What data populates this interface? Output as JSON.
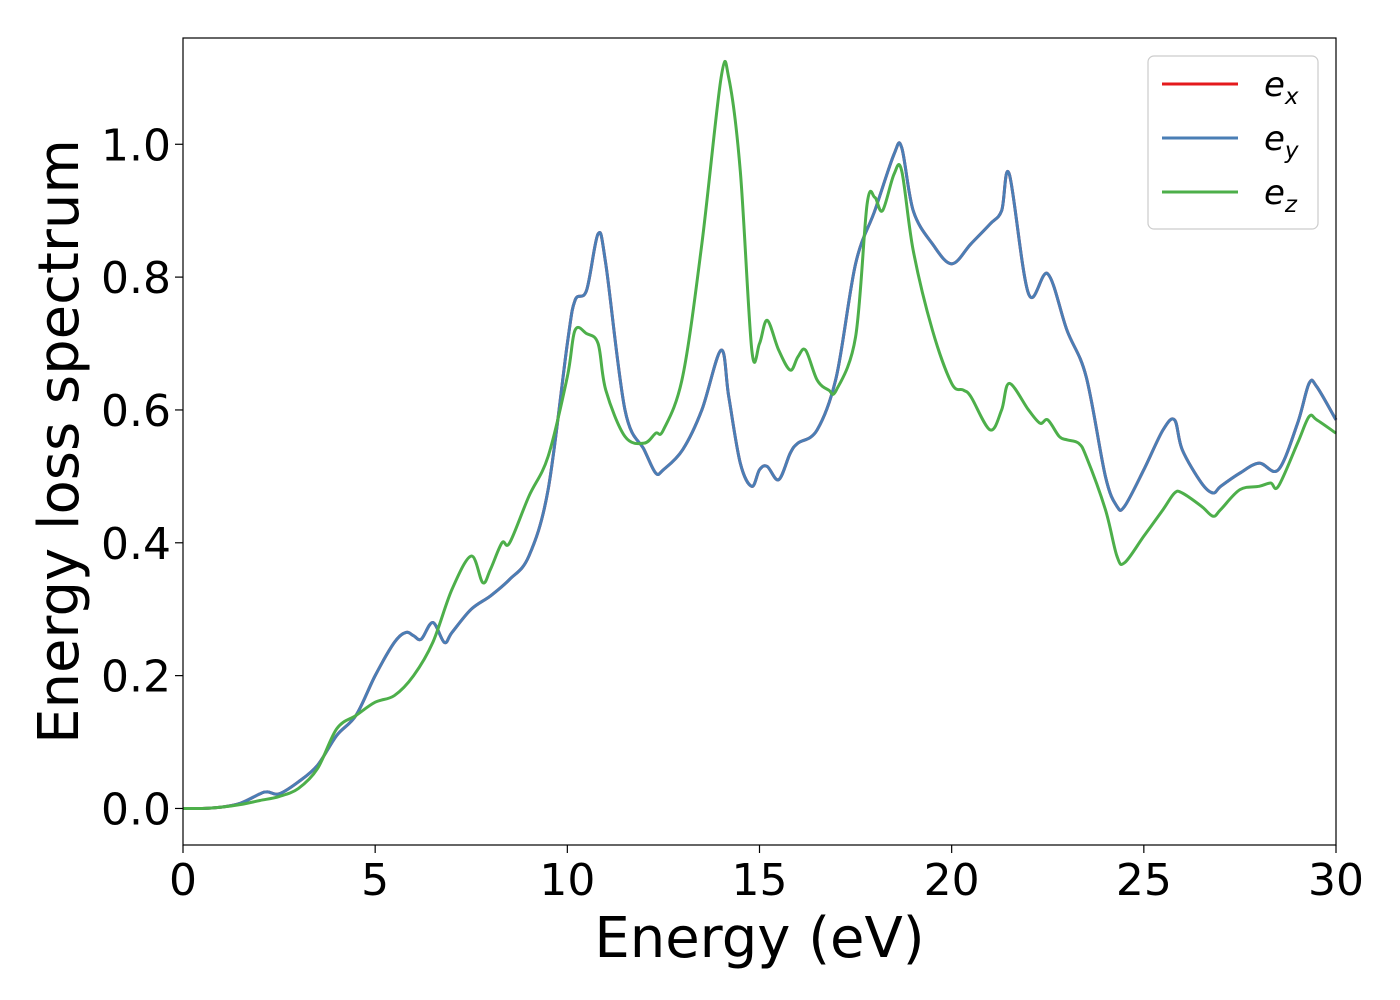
{
  "chart_data": {
    "type": "line",
    "title": "",
    "xlabel": "Energy (eV)",
    "ylabel": "Energy loss spectrum",
    "xlim": [
      0,
      30
    ],
    "ylim": [
      -0.055,
      1.16
    ],
    "xticks": [
      0,
      5,
      10,
      15,
      20,
      25,
      30
    ],
    "xtick_labels": [
      "0",
      "5",
      "10",
      "15",
      "20",
      "25",
      "30"
    ],
    "yticks": [
      0.0,
      0.2,
      0.4,
      0.6,
      0.8,
      1.0
    ],
    "ytick_labels": [
      "0.0",
      "0.2",
      "0.4",
      "0.6",
      "0.8",
      "1.0"
    ],
    "grid": false,
    "legend_position": "top-right",
    "series": [
      {
        "name": "e_x",
        "legend_base": "e",
        "legend_sub": "x",
        "color": "#e41a1c",
        "x": [
          0,
          0.5,
          1.0,
          1.5,
          2.0,
          2.2,
          2.5,
          3.0,
          3.5,
          4.0,
          4.5,
          5.0,
          5.5,
          5.8,
          6.0,
          6.2,
          6.5,
          6.8,
          7.0,
          7.5,
          8.0,
          8.5,
          9.0,
          9.5,
          10.0,
          10.2,
          10.5,
          10.8,
          11.0,
          11.5,
          12.0,
          12.3,
          12.5,
          13.0,
          13.5,
          14.0,
          14.2,
          14.5,
          14.8,
          15.0,
          15.2,
          15.5,
          15.8,
          16.0,
          16.5,
          17.0,
          17.5,
          18.0,
          18.5,
          18.7,
          19.0,
          19.5,
          20.0,
          20.5,
          21.0,
          21.3,
          21.5,
          22.0,
          22.5,
          23.0,
          23.5,
          24.0,
          24.3,
          24.5,
          25.0,
          25.5,
          25.8,
          26.0,
          26.5,
          26.8,
          27.0,
          27.5,
          28.0,
          28.5,
          29.0,
          29.3,
          29.5,
          30.0
        ],
        "y": [
          0.0,
          0.0,
          0.002,
          0.008,
          0.022,
          0.025,
          0.022,
          0.04,
          0.065,
          0.11,
          0.14,
          0.2,
          0.25,
          0.265,
          0.26,
          0.255,
          0.28,
          0.25,
          0.265,
          0.3,
          0.32,
          0.345,
          0.38,
          0.48,
          0.7,
          0.765,
          0.78,
          0.865,
          0.82,
          0.6,
          0.54,
          0.505,
          0.51,
          0.54,
          0.6,
          0.69,
          0.62,
          0.52,
          0.485,
          0.51,
          0.515,
          0.495,
          0.535,
          0.55,
          0.57,
          0.65,
          0.82,
          0.9,
          0.985,
          0.995,
          0.9,
          0.85,
          0.82,
          0.85,
          0.88,
          0.9,
          0.955,
          0.775,
          0.805,
          0.72,
          0.65,
          0.5,
          0.455,
          0.455,
          0.51,
          0.57,
          0.585,
          0.54,
          0.49,
          0.475,
          0.485,
          0.505,
          0.52,
          0.51,
          0.58,
          0.64,
          0.635,
          0.585
        ]
      },
      {
        "name": "e_y",
        "legend_base": "e",
        "legend_sub": "y",
        "color": "#4a7eb5",
        "x": [
          0,
          0.5,
          1.0,
          1.5,
          2.0,
          2.2,
          2.5,
          3.0,
          3.5,
          4.0,
          4.5,
          5.0,
          5.5,
          5.8,
          6.0,
          6.2,
          6.5,
          6.8,
          7.0,
          7.5,
          8.0,
          8.5,
          9.0,
          9.5,
          10.0,
          10.2,
          10.5,
          10.8,
          11.0,
          11.5,
          12.0,
          12.3,
          12.5,
          13.0,
          13.5,
          14.0,
          14.2,
          14.5,
          14.8,
          15.0,
          15.2,
          15.5,
          15.8,
          16.0,
          16.5,
          17.0,
          17.5,
          18.0,
          18.5,
          18.7,
          19.0,
          19.5,
          20.0,
          20.5,
          21.0,
          21.3,
          21.5,
          22.0,
          22.5,
          23.0,
          23.5,
          24.0,
          24.3,
          24.5,
          25.0,
          25.5,
          25.8,
          26.0,
          26.5,
          26.8,
          27.0,
          27.5,
          28.0,
          28.5,
          29.0,
          29.3,
          29.5,
          30.0
        ],
        "y": [
          0.0,
          0.0,
          0.002,
          0.008,
          0.022,
          0.025,
          0.022,
          0.04,
          0.065,
          0.11,
          0.14,
          0.2,
          0.25,
          0.265,
          0.26,
          0.255,
          0.28,
          0.25,
          0.265,
          0.3,
          0.32,
          0.345,
          0.38,
          0.48,
          0.7,
          0.765,
          0.78,
          0.865,
          0.82,
          0.6,
          0.54,
          0.505,
          0.51,
          0.54,
          0.6,
          0.69,
          0.62,
          0.52,
          0.485,
          0.51,
          0.515,
          0.495,
          0.535,
          0.55,
          0.57,
          0.65,
          0.82,
          0.9,
          0.985,
          0.995,
          0.9,
          0.85,
          0.82,
          0.85,
          0.88,
          0.9,
          0.955,
          0.775,
          0.805,
          0.72,
          0.65,
          0.5,
          0.455,
          0.455,
          0.51,
          0.57,
          0.585,
          0.54,
          0.49,
          0.475,
          0.485,
          0.505,
          0.52,
          0.51,
          0.58,
          0.64,
          0.635,
          0.585
        ]
      },
      {
        "name": "e_z",
        "legend_base": "e",
        "legend_sub": "z",
        "color": "#4daf4a",
        "x": [
          0,
          0.5,
          1.0,
          1.5,
          2.0,
          2.5,
          3.0,
          3.5,
          4.0,
          4.5,
          5.0,
          5.5,
          6.0,
          6.5,
          7.0,
          7.5,
          7.8,
          8.0,
          8.3,
          8.5,
          9.0,
          9.5,
          10.0,
          10.2,
          10.5,
          10.8,
          11.0,
          11.5,
          12.0,
          12.3,
          12.5,
          13.0,
          13.5,
          14.0,
          14.2,
          14.5,
          14.8,
          15.0,
          15.2,
          15.5,
          15.8,
          16.0,
          16.2,
          16.5,
          16.8,
          17.0,
          17.5,
          17.8,
          18.0,
          18.2,
          18.5,
          18.7,
          19.0,
          19.5,
          20.0,
          20.3,
          20.5,
          21.0,
          21.3,
          21.5,
          22.0,
          22.3,
          22.5,
          22.8,
          23.0,
          23.3,
          23.5,
          24.0,
          24.3,
          24.5,
          25.0,
          25.5,
          25.8,
          26.0,
          26.5,
          26.8,
          27.0,
          27.5,
          28.0,
          28.3,
          28.5,
          29.0,
          29.3,
          29.5,
          30.0
        ],
        "y": [
          0.0,
          0.0,
          0.002,
          0.006,
          0.012,
          0.018,
          0.03,
          0.06,
          0.12,
          0.14,
          0.16,
          0.17,
          0.2,
          0.25,
          0.33,
          0.38,
          0.34,
          0.36,
          0.4,
          0.4,
          0.47,
          0.53,
          0.65,
          0.72,
          0.715,
          0.7,
          0.63,
          0.56,
          0.55,
          0.565,
          0.57,
          0.65,
          0.85,
          1.1,
          1.1,
          0.96,
          0.69,
          0.7,
          0.735,
          0.69,
          0.66,
          0.68,
          0.69,
          0.645,
          0.63,
          0.63,
          0.71,
          0.91,
          0.92,
          0.9,
          0.955,
          0.96,
          0.84,
          0.72,
          0.64,
          0.63,
          0.62,
          0.57,
          0.6,
          0.64,
          0.6,
          0.58,
          0.585,
          0.56,
          0.555,
          0.55,
          0.53,
          0.45,
          0.38,
          0.37,
          0.41,
          0.45,
          0.475,
          0.475,
          0.455,
          0.44,
          0.45,
          0.48,
          0.485,
          0.49,
          0.485,
          0.55,
          0.59,
          0.585,
          0.565
        ]
      }
    ]
  }
}
